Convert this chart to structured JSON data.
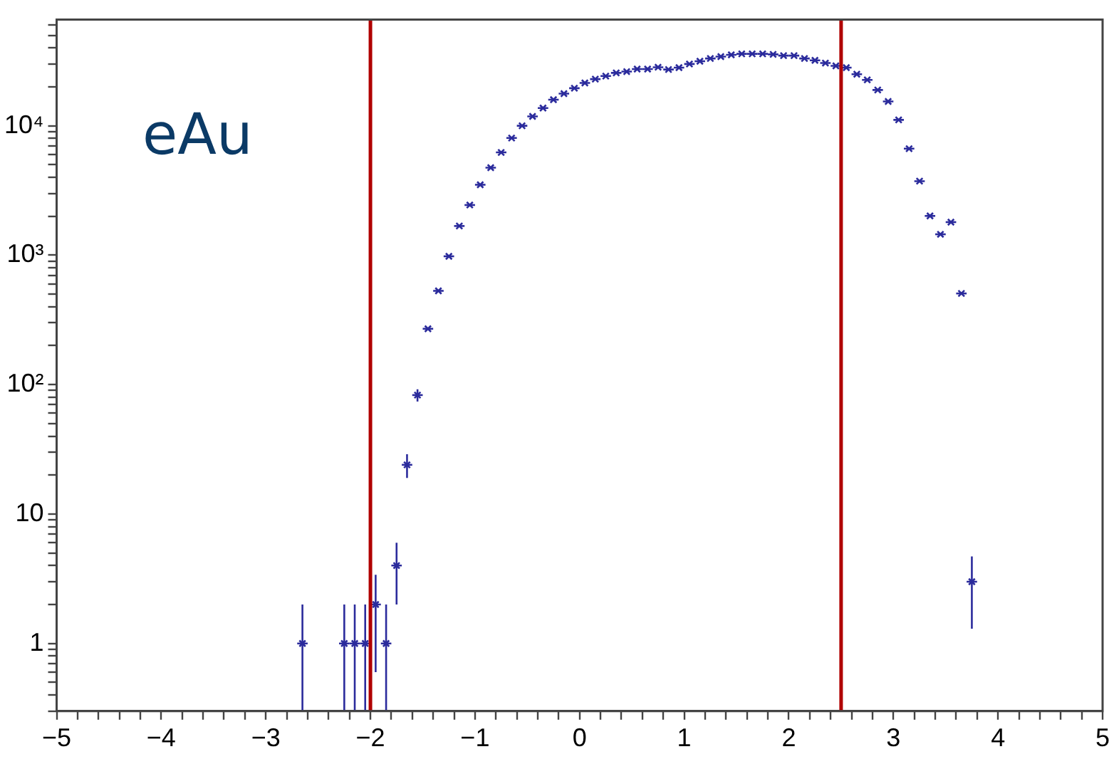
{
  "chart_data": {
    "type": "scatter",
    "annotations": [
      "eAu"
    ],
    "x": [
      -2.65,
      -2.25,
      -2.15,
      -2.05,
      -1.95,
      -1.85,
      -1.75,
      -1.65,
      -1.55,
      -1.45,
      -1.35,
      -1.25,
      -1.15,
      -1.05,
      -0.95,
      -0.85,
      -0.75,
      -0.65,
      -0.55,
      -0.45,
      -0.35,
      -0.25,
      -0.15,
      -0.05,
      0.05,
      0.15,
      0.25,
      0.35,
      0.45,
      0.55,
      0.65,
      0.75,
      0.85,
      0.95,
      1.05,
      1.15,
      1.25,
      1.35,
      1.45,
      1.55,
      1.65,
      1.75,
      1.85,
      1.95,
      2.05,
      2.15,
      2.25,
      2.35,
      2.45,
      2.55,
      2.65,
      2.75,
      2.85,
      2.95,
      3.05,
      3.15,
      3.25,
      3.35,
      3.45,
      3.55,
      3.65,
      3.75
    ],
    "series": [
      {
        "color": "#2b2b9c",
        "values": [
          1,
          1,
          1,
          1,
          2,
          1,
          4,
          24,
          83,
          270,
          530,
          980,
          1680,
          2440,
          3500,
          4740,
          6220,
          8040,
          10000,
          11800,
          13700,
          15900,
          17700,
          19500,
          21400,
          22900,
          24200,
          25600,
          26200,
          27400,
          27400,
          28300,
          27200,
          28100,
          30000,
          31500,
          33100,
          34200,
          35300,
          35900,
          35900,
          35900,
          35600,
          34800,
          34800,
          33100,
          32000,
          30500,
          29000,
          28100,
          25000,
          22600,
          18900,
          15400,
          11100,
          6650,
          3730,
          2010,
          1450,
          1800,
          506,
          3
        ],
        "errors": [
          [
            0.3,
            2
          ],
          [
            0.3,
            2
          ],
          [
            0.3,
            2
          ],
          [
            0.3,
            2
          ],
          [
            0.6,
            3.4
          ],
          [
            0.3,
            2
          ],
          [
            2,
            6
          ],
          [
            19,
            29
          ],
          [
            74,
            92
          ],
          null,
          null,
          null,
          null,
          null,
          null,
          null,
          null,
          null,
          null,
          null,
          null,
          null,
          null,
          null,
          null,
          null,
          null,
          null,
          null,
          null,
          null,
          null,
          null,
          null,
          null,
          null,
          null,
          null,
          null,
          null,
          null,
          null,
          null,
          null,
          null,
          null,
          null,
          null,
          null,
          null,
          null,
          null,
          null,
          null,
          null,
          null,
          null,
          null,
          null,
          null,
          null,
          [
            1.3,
            4.7
          ]
        ],
        "xerrors": [
          0.05,
          0.05,
          0.05,
          0.05,
          0.05,
          0.05,
          0.05,
          0.05,
          0.05,
          0.05,
          0.05,
          0.05,
          0.05,
          0.05,
          0.05,
          0.05,
          0.05,
          0.05,
          0.05,
          0.05,
          0.05,
          0.05,
          0.05,
          0.05,
          0.05,
          0.05,
          0.05,
          0.05,
          0.05,
          0.05,
          0.05,
          0.05,
          0.05,
          0.05,
          0.05,
          0.05,
          0.05,
          0.05,
          0.05,
          0.05,
          0.05,
          0.05,
          0.05,
          0.05,
          0.05,
          0.05,
          0.05,
          0.05,
          0.05,
          0.05,
          0.05,
          0.05,
          0.05,
          0.05,
          0.05,
          0.05,
          0.05,
          0.05,
          0.05,
          0.05,
          0.05,
          0.05
        ]
      }
    ],
    "marker": "cross",
    "log": "y",
    "grid": false,
    "legend": false,
    "xlim": [
      -5,
      5
    ],
    "ylim": [
      0.3,
      66000
    ],
    "xticks": [
      {
        "value": -5,
        "label": "−5"
      },
      {
        "value": -4.8,
        "label": null
      },
      {
        "value": -4.6,
        "label": null
      },
      {
        "value": -4.4,
        "label": null
      },
      {
        "value": -4.2,
        "label": null
      },
      {
        "value": -4,
        "label": "−4"
      },
      {
        "value": -3.8,
        "label": null
      },
      {
        "value": -3.6,
        "label": null
      },
      {
        "value": -3.4,
        "label": null
      },
      {
        "value": -3.2,
        "label": null
      },
      {
        "value": -3,
        "label": "−3"
      },
      {
        "value": -2.8,
        "label": null
      },
      {
        "value": -2.6,
        "label": null
      },
      {
        "value": -2.4,
        "label": null
      },
      {
        "value": -2.2,
        "label": null
      },
      {
        "value": -2,
        "label": "−2"
      },
      {
        "value": -1.8,
        "label": null
      },
      {
        "value": -1.6,
        "label": null
      },
      {
        "value": -1.4,
        "label": null
      },
      {
        "value": -1.2,
        "label": null
      },
      {
        "value": -1,
        "label": "−1"
      },
      {
        "value": -0.8,
        "label": null
      },
      {
        "value": -0.6,
        "label": null
      },
      {
        "value": -0.4,
        "label": null
      },
      {
        "value": -0.2,
        "label": null
      },
      0,
      {
        "value": 0.2,
        "label": null
      },
      {
        "value": 0.4,
        "label": null
      },
      {
        "value": 0.6,
        "label": null
      },
      {
        "value": 0.8,
        "label": null
      },
      1,
      {
        "value": 1.2,
        "label": null
      },
      {
        "value": 1.4,
        "label": null
      },
      {
        "value": 1.6,
        "label": null
      },
      {
        "value": 1.8,
        "label": null
      },
      2,
      {
        "value": 2.2,
        "label": null
      },
      {
        "value": 2.4,
        "label": null
      },
      {
        "value": 2.6,
        "label": null
      },
      {
        "value": 2.8,
        "label": null
      },
      3,
      {
        "value": 3.2,
        "label": null
      },
      {
        "value": 3.4,
        "label": null
      },
      {
        "value": 3.6,
        "label": null
      },
      {
        "value": 3.8,
        "label": null
      },
      4,
      {
        "value": 4.2,
        "label": null
      },
      {
        "value": 4.4,
        "label": null
      },
      {
        "value": 4.6,
        "label": null
      },
      {
        "value": 4.8,
        "label": null
      },
      5
    ],
    "yticks": [
      {
        "value": 0.3,
        "label": null
      },
      {
        "value": 0.4,
        "label": null
      },
      {
        "value": 0.5,
        "label": null
      },
      {
        "value": 0.6,
        "label": null
      },
      {
        "value": 0.7,
        "label": null
      },
      {
        "value": 0.8,
        "label": null
      },
      {
        "value": 0.9,
        "label": null
      },
      1,
      {
        "value": 2,
        "label": null
      },
      {
        "value": 3,
        "label": null
      },
      {
        "value": 4,
        "label": null
      },
      {
        "value": 5,
        "label": null
      },
      {
        "value": 6,
        "label": null
      },
      {
        "value": 7,
        "label": null
      },
      {
        "value": 8,
        "label": null
      },
      {
        "value": 9,
        "label": null
      },
      10,
      {
        "value": 20,
        "label": null
      },
      {
        "value": 30,
        "label": null
      },
      {
        "value": 40,
        "label": null
      },
      {
        "value": 50,
        "label": null
      },
      {
        "value": 60,
        "label": null
      },
      {
        "value": 70,
        "label": null
      },
      {
        "value": 80,
        "label": null
      },
      {
        "value": 90,
        "label": null
      },
      {
        "value": 100,
        "label": "10²"
      },
      {
        "value": 200,
        "label": null
      },
      {
        "value": 300,
        "label": null
      },
      {
        "value": 400,
        "label": null
      },
      {
        "value": 500,
        "label": null
      },
      {
        "value": 600,
        "label": null
      },
      {
        "value": 700,
        "label": null
      },
      {
        "value": 800,
        "label": null
      },
      {
        "value": 900,
        "label": null
      },
      {
        "value": 1000,
        "label": "10³"
      },
      {
        "value": 2000,
        "label": null
      },
      {
        "value": 3000,
        "label": null
      },
      {
        "value": 4000,
        "label": null
      },
      {
        "value": 5000,
        "label": null
      },
      {
        "value": 6000,
        "label": null
      },
      {
        "value": 7000,
        "label": null
      },
      {
        "value": 8000,
        "label": null
      },
      {
        "value": 9000,
        "label": null
      },
      {
        "value": 10000,
        "label": "10⁴"
      },
      {
        "value": 20000,
        "label": null
      },
      {
        "value": 30000,
        "label": null
      },
      {
        "value": 40000,
        "label": null
      },
      {
        "value": 50000,
        "label": null
      },
      {
        "value": 60000,
        "label": null
      }
    ],
    "ref_lines": [
      {
        "axis": "x",
        "value": -2,
        "color": "#b00000"
      },
      {
        "axis": "x",
        "value": 2.5,
        "color": "#b00000"
      }
    ]
  }
}
